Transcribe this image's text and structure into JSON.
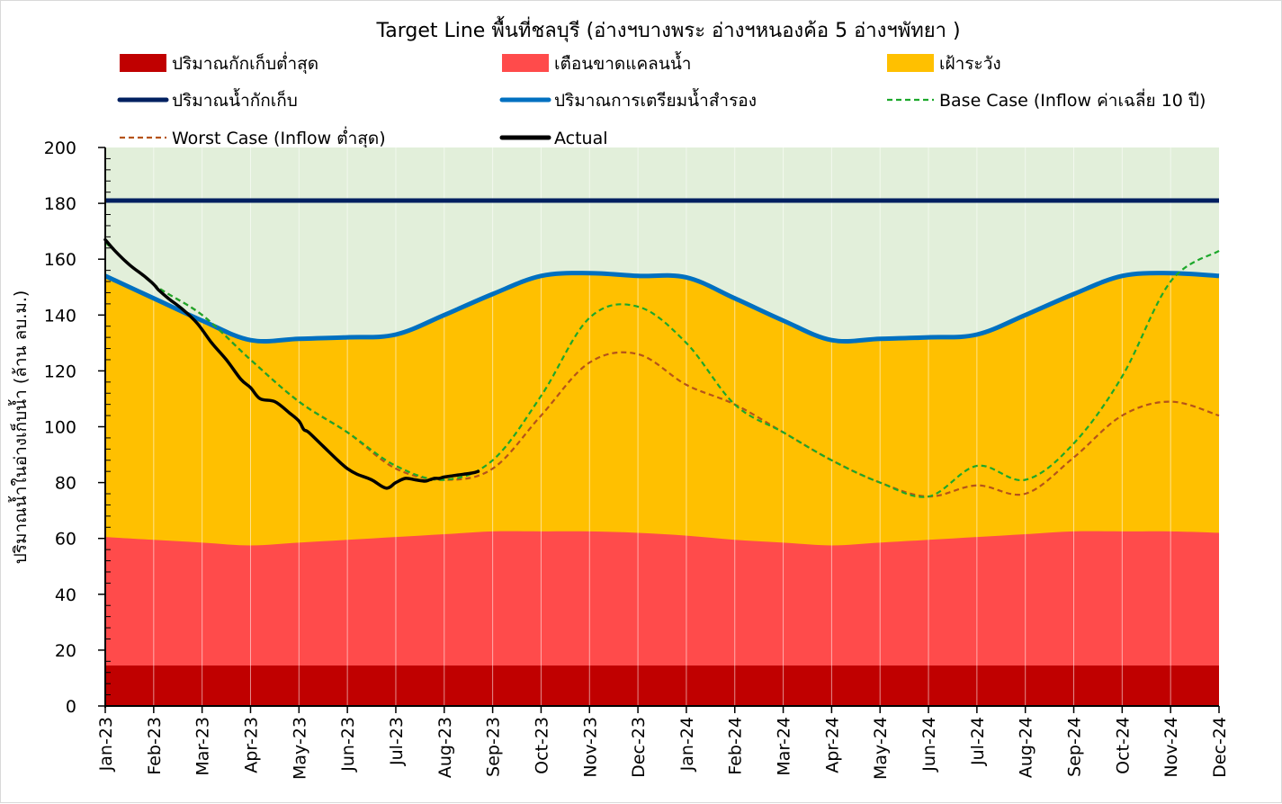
{
  "chart_data": {
    "type": "area",
    "title": "Target Line พื้นที่ชลบุรี (อ่างฯบางพระ อ่างฯหนองค้อ 5 อ่างฯพัทยา )",
    "xlabel": "",
    "ylabel": "ปริมาณน้ำในอ่างเก็บน้ำ (ล้าน ลบ.ม.)",
    "ylim": [
      0,
      200
    ],
    "yticks": [
      0,
      20,
      40,
      60,
      80,
      100,
      120,
      140,
      160,
      180,
      200
    ],
    "yticks_labels": [
      "0",
      "20",
      "40",
      "60",
      "80",
      "100",
      "120",
      "140",
      "160",
      "180",
      "200"
    ],
    "grid": true,
    "legend_position": "top",
    "categories": [
      "Jan-23",
      "Feb-23",
      "Mar-23",
      "Apr-23",
      "May-23",
      "Jun-23",
      "Jul-23",
      "Aug-23",
      "Sep-23",
      "Oct-23",
      "Nov-23",
      "Dec-23",
      "Jan-24",
      "Feb-24",
      "Mar-24",
      "Apr-24",
      "May-24",
      "Jun-24",
      "Jul-24",
      "Aug-24",
      "Sep-24",
      "Oct-24",
      "Nov-24",
      "Dec-24"
    ],
    "colors": {
      "plot_background": "#e2efda",
      "min_storage": "#c00000",
      "shortage_warning": "#ff4b4b",
      "watch": "#ffc000",
      "capacity": "#002060",
      "reserve": "#0070c0",
      "base_case": "#1ca82b",
      "worst_case": "#b5531a",
      "actual": "#000000"
    },
    "legend": [
      {
        "key": "min_storage",
        "label": "ปริมาณกักเก็บต่ำสุด",
        "style": "patch"
      },
      {
        "key": "shortage_warning",
        "label": "เตือนขาดแคลนน้ำ",
        "style": "patch"
      },
      {
        "key": "watch",
        "label": "เฝ้าระวัง",
        "style": "patch"
      },
      {
        "key": "capacity",
        "label": "ปริมาณน้ำกักเก็บ",
        "style": "thick"
      },
      {
        "key": "reserve",
        "label": "ปริมาณการเตรียมน้ำสำรอง",
        "style": "thick"
      },
      {
        "key": "base_case",
        "label": "Base Case (Inflow ค่าเฉลี่ย 10 ปี)",
        "style": "dash"
      },
      {
        "key": "worst_case",
        "label": "Worst Case (Inflow ต่ำสุด)",
        "style": "dash"
      },
      {
        "key": "actual",
        "label": "Actual",
        "style": "thick"
      }
    ],
    "series": [
      {
        "key": "min_storage",
        "name": "ปริมาณกักเก็บต่ำสุด",
        "kind": "area",
        "values": [
          14.5,
          14.5,
          14.5,
          14.5,
          14.5,
          14.5,
          14.5,
          14.5,
          14.5,
          14.5,
          14.5,
          14.5,
          14.5,
          14.5,
          14.5,
          14.5,
          14.5,
          14.5,
          14.5,
          14.5,
          14.5,
          14.5,
          14.5,
          14.5
        ]
      },
      {
        "key": "shortage_warning",
        "name": "เตือนขาดแคลนน้ำ",
        "kind": "area",
        "values": [
          60.5,
          59.5,
          58.5,
          57.5,
          58.5,
          59.5,
          60.5,
          61.5,
          62.5,
          62.5,
          62.5,
          62,
          61,
          59.5,
          58.5,
          57.5,
          58.5,
          59.5,
          60.5,
          61.5,
          62.5,
          62.5,
          62.5,
          62
        ]
      },
      {
        "key": "watch",
        "name": "เฝ้าระวัง",
        "kind": "area",
        "values": [
          154,
          146,
          138,
          131,
          131.5,
          132,
          133,
          140,
          147.5,
          154,
          155,
          154,
          153.5,
          146,
          138,
          131,
          131.5,
          132,
          133,
          140,
          147.5,
          154,
          155,
          154
        ]
      },
      {
        "key": "capacity",
        "name": "ปริมาณน้ำกักเก็บ",
        "kind": "line",
        "values": [
          181,
          181,
          181,
          181,
          181,
          181,
          181,
          181,
          181,
          181,
          181,
          181,
          181,
          181,
          181,
          181,
          181,
          181,
          181,
          181,
          181,
          181,
          181,
          181
        ]
      },
      {
        "key": "reserve",
        "name": "ปริมาณการเตรียมน้ำสำรอง",
        "kind": "line",
        "values": [
          154,
          146,
          138,
          131,
          131.5,
          132,
          133,
          140,
          147.5,
          154,
          155,
          154,
          153.5,
          146,
          138,
          131,
          131.5,
          132,
          133,
          140,
          147.5,
          154,
          155,
          154
        ]
      },
      {
        "key": "base_case",
        "name": "Base Case (Inflow ค่าเฉลี่ย 10 ปี)",
        "kind": "dash",
        "values": [
          166,
          151,
          140,
          124,
          109,
          98,
          86,
          81,
          88,
          111,
          139,
          143,
          130,
          108,
          98,
          88,
          80,
          75,
          86,
          81,
          94,
          118,
          152,
          163
        ]
      },
      {
        "key": "worst_case",
        "name": "Worst Case (Inflow ต่ำสุด)",
        "kind": "dash",
        "values": [
          166,
          151,
          140,
          124,
          109,
          98,
          85,
          81,
          85,
          104,
          123,
          126,
          115,
          108,
          98,
          88,
          80,
          75,
          79,
          76,
          89,
          104,
          109,
          104
        ]
      }
    ],
    "actual": {
      "name": "Actual",
      "x": [
        0,
        0.2,
        0.5,
        0.8,
        1.0,
        1.1,
        1.3,
        1.6,
        1.9,
        2.2,
        2.5,
        2.8,
        3.0,
        3.2,
        3.5,
        3.8,
        4.0,
        4.1,
        4.2,
        4.5,
        4.8,
        5.0,
        5.2,
        5.5,
        5.8,
        6.0,
        6.2,
        6.4,
        6.6,
        6.7,
        6.8,
        6.9,
        7.0,
        7.2,
        7.4,
        7.6,
        7.7
      ],
      "values": [
        167,
        163,
        158,
        154,
        151,
        149,
        146,
        142,
        137,
        130,
        124,
        117,
        114,
        110,
        109,
        105,
        102,
        99,
        98,
        93,
        88,
        85,
        83,
        81,
        78,
        80,
        81.5,
        81,
        80.5,
        81,
        81.5,
        81.5,
        82,
        82.5,
        83,
        83.5,
        84
      ]
    }
  }
}
